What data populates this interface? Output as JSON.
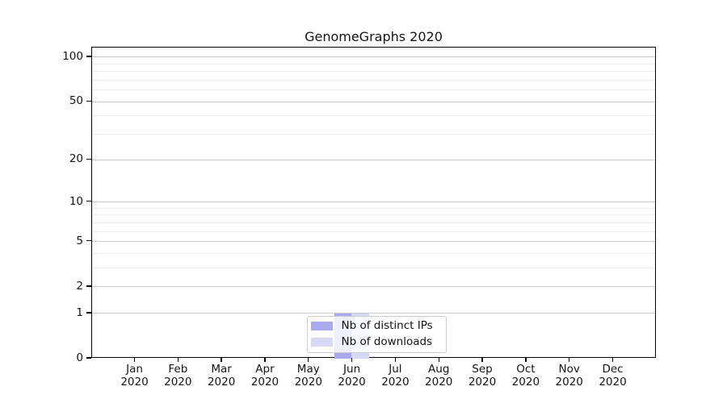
{
  "figure": {
    "title": "GenomeGraphs 2020"
  },
  "chart_data": {
    "type": "bar",
    "title": "GenomeGraphs 2020",
    "categories": [
      {
        "month": "Jan",
        "year": "2020"
      },
      {
        "month": "Feb",
        "year": "2020"
      },
      {
        "month": "Mar",
        "year": "2020"
      },
      {
        "month": "Apr",
        "year": "2020"
      },
      {
        "month": "May",
        "year": "2020"
      },
      {
        "month": "Jun",
        "year": "2020"
      },
      {
        "month": "Jul",
        "year": "2020"
      },
      {
        "month": "Aug",
        "year": "2020"
      },
      {
        "month": "Sep",
        "year": "2020"
      },
      {
        "month": "Oct",
        "year": "2020"
      },
      {
        "month": "Nov",
        "year": "2020"
      },
      {
        "month": "Dec",
        "year": "2020"
      }
    ],
    "series": [
      {
        "name": "Nb of distinct IPs",
        "color": "#a9aaee",
        "values": [
          0,
          0,
          0,
          0,
          0,
          1,
          0,
          0,
          0,
          0,
          0,
          0
        ]
      },
      {
        "name": "Nb of downloads",
        "color": "#d8d9f6",
        "values": [
          0,
          0,
          0,
          0,
          0,
          1,
          0,
          0,
          0,
          0,
          0,
          0
        ]
      }
    ],
    "xlabel": "",
    "ylabel": "",
    "yscale": "log1p",
    "ylim": [
      0,
      116
    ],
    "y_major_ticks": [
      0,
      1,
      2,
      5,
      10,
      20,
      50,
      100
    ],
    "y_minor_ticks": [
      3,
      4,
      6,
      7,
      8,
      9,
      30,
      40,
      60,
      70,
      80,
      90
    ],
    "grid": true,
    "legend_position": "lower center",
    "colors": {
      "grid_major": "#c9c9c9",
      "grid_minor": "#ededed",
      "axis": "#000000",
      "legend_border": "#cccccc",
      "legend_bg": "rgba(255,255,255,0.8)"
    }
  }
}
